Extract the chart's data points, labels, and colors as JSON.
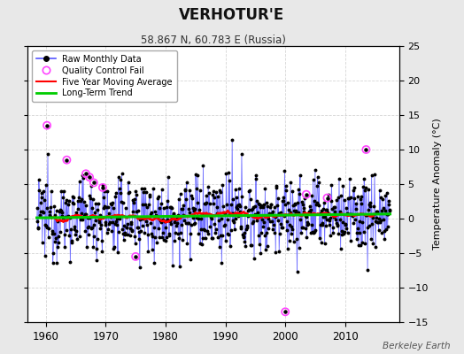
{
  "title": "VERHOTUR'E",
  "subtitle": "58.867 N, 60.783 E (Russia)",
  "ylabel": "Temperature Anomaly (°C)",
  "watermark": "Berkeley Earth",
  "xlim": [
    1957,
    2019
  ],
  "ylim": [
    -15,
    25
  ],
  "yticks": [
    -15,
    -10,
    -5,
    0,
    5,
    10,
    15,
    20,
    25
  ],
  "xticks": [
    1960,
    1970,
    1980,
    1990,
    2000,
    2010
  ],
  "bg_color": "#e8e8e8",
  "plot_bg_color": "#ffffff",
  "raw_line_color": "#5555ff",
  "raw_dot_color": "#000000",
  "mavg_color": "#ff0000",
  "trend_color": "#00cc00",
  "qc_fail_color": "#ff44ff",
  "seed": 12345,
  "qc_times": [
    1960.2,
    1963.5,
    1966.7,
    1967.3,
    1968.0,
    1969.5,
    1975.0,
    2000.0,
    2003.5,
    2007.0,
    2013.5
  ],
  "qc_vals": [
    13.5,
    8.5,
    6.5,
    6.0,
    5.2,
    4.5,
    -5.5,
    -13.5,
    3.5,
    3.0,
    10.0
  ]
}
